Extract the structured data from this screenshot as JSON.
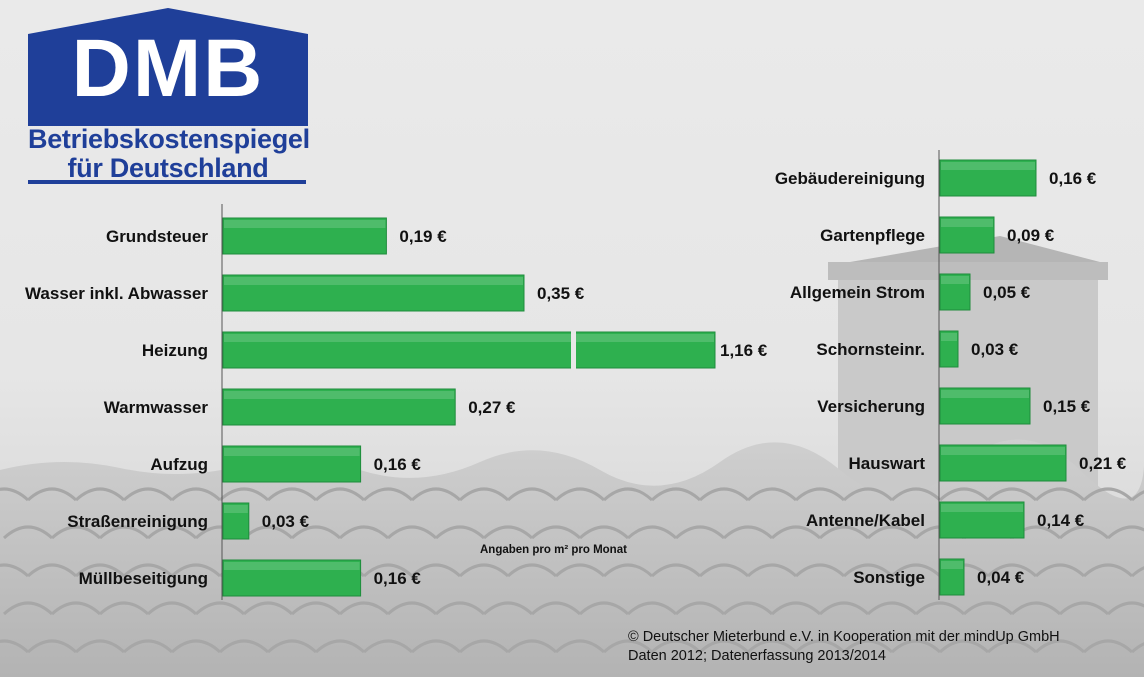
{
  "logo": {
    "mark": "DMB",
    "line1": "Betriebskostenspiegel",
    "line2": "für Deutschland",
    "brand_color": "#1f3f99"
  },
  "note": "Angaben pro m² pro Monat",
  "credit": {
    "line1": "© Deutscher Mieterbund e.V. in Kooperation mit der mindUp GmbH",
    "line2": "Daten 2012; Datenerfassung 2013/2014"
  },
  "chart_data": [
    {
      "type": "bar",
      "orientation": "horizontal",
      "bar_color": "#2eb04f",
      "unit": "€",
      "categories": [
        "Grundsteuer",
        "Wasser inkl. Abwasser",
        "Heizung",
        "Warmwasser",
        "Aufzug",
        "Straßenreinigung",
        "Müllbeseitigung"
      ],
      "values": [
        0.19,
        0.35,
        1.16,
        0.27,
        0.16,
        0.03,
        0.16
      ],
      "value_labels": [
        "0,19 €",
        "0,35 €",
        "1,16 €",
        "0,27 €",
        "0,16 €",
        "0,03 €",
        "0,16 €"
      ],
      "broken_axis": [
        "Heizung"
      ]
    },
    {
      "type": "bar",
      "orientation": "horizontal",
      "bar_color": "#2eb04f",
      "unit": "€",
      "categories": [
        "Gebäudereinigung",
        "Gartenpflege",
        "Allgemein Strom",
        "Schornsteinr.",
        "Versicherung",
        "Hauswart",
        "Antenne/Kabel",
        "Sonstige"
      ],
      "values": [
        0.16,
        0.09,
        0.05,
        0.03,
        0.15,
        0.21,
        0.14,
        0.04
      ],
      "value_labels": [
        "0,16 €",
        "0,09 €",
        "0,05 €",
        "0,03 €",
        "0,15 €",
        "0,21 €",
        "0,14 €",
        "0,04 €"
      ]
    }
  ]
}
